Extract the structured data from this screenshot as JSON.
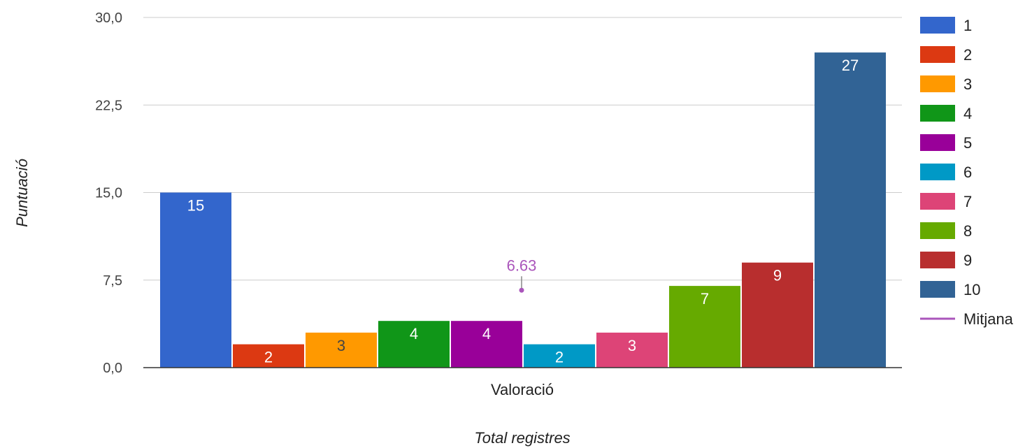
{
  "chart_data": {
    "type": "bar",
    "categories": [
      "Valoració"
    ],
    "series": [
      {
        "name": "1",
        "values": [
          15
        ],
        "color": "#3366cc"
      },
      {
        "name": "2",
        "values": [
          2
        ],
        "color": "#dc3912"
      },
      {
        "name": "3",
        "values": [
          3
        ],
        "color": "#ff9900"
      },
      {
        "name": "4",
        "values": [
          4
        ],
        "color": "#109618"
      },
      {
        "name": "5",
        "values": [
          4
        ],
        "color": "#990099"
      },
      {
        "name": "6",
        "values": [
          2
        ],
        "color": "#0099c6"
      },
      {
        "name": "7",
        "values": [
          3
        ],
        "color": "#dd4477"
      },
      {
        "name": "8",
        "values": [
          7
        ],
        "color": "#66aa00"
      },
      {
        "name": "9",
        "values": [
          9
        ],
        "color": "#b82e2e"
      },
      {
        "name": "10",
        "values": [
          27
        ],
        "color": "#316395"
      }
    ],
    "data_labels": [
      "15",
      "2",
      "3",
      "4",
      "4",
      "2",
      "3",
      "7",
      "9",
      "27"
    ],
    "mean": {
      "name": "Mitjana",
      "value": 6.63,
      "label": "6.63",
      "color": "#aa55bb"
    },
    "xlabel": "Total registres",
    "ylabel": "Puntuació",
    "ylim": [
      0,
      30
    ],
    "yticks": [
      0,
      7.5,
      15,
      22.5,
      30
    ],
    "ytick_labels": [
      "0,0",
      "7,5",
      "15,0",
      "22,5",
      "30,0"
    ],
    "grid": true,
    "legend_position": "right"
  }
}
